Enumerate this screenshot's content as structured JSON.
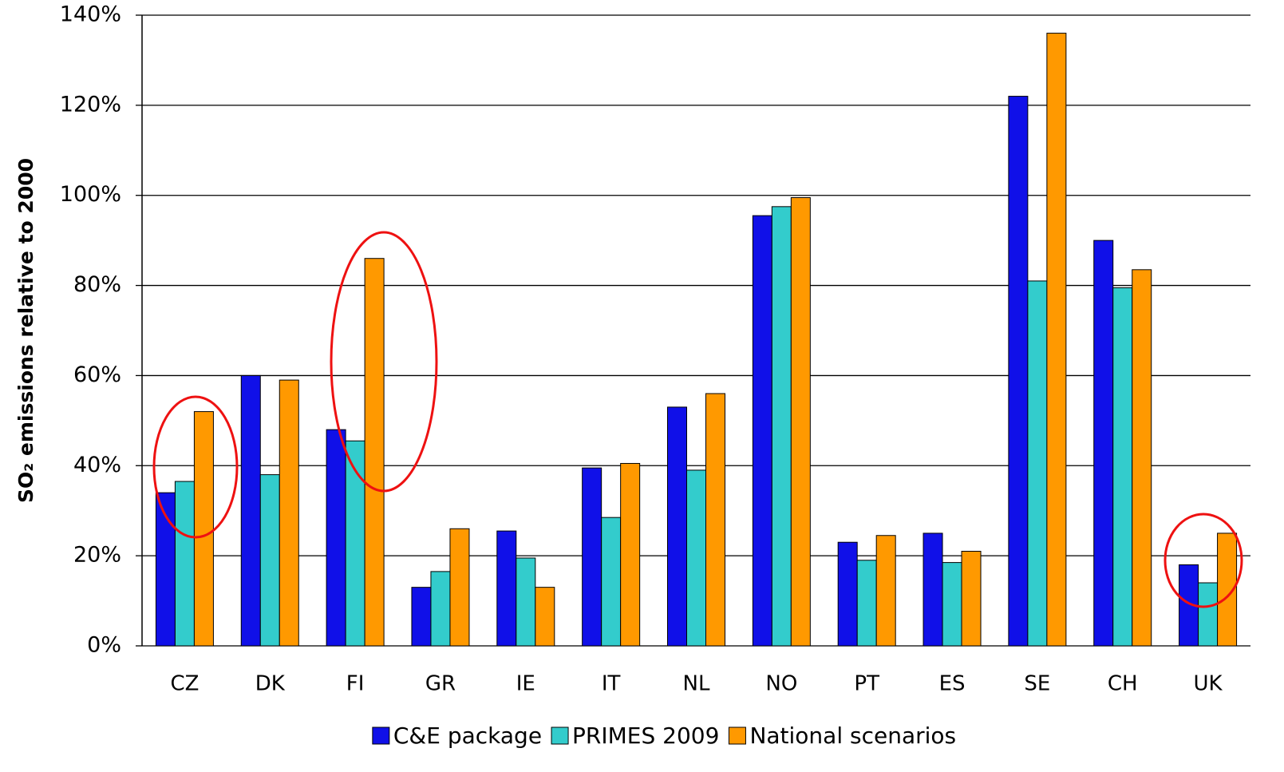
{
  "chart_data": {
    "type": "bar",
    "ylabel": "SO₂ emissions relative to 2000",
    "categories": [
      "CZ",
      "DK",
      "FI",
      "GR",
      "IE",
      "IT",
      "NL",
      "NO",
      "PT",
      "ES",
      "SE",
      "CH",
      "UK"
    ],
    "series": [
      {
        "name": "C&E package",
        "color": "#1010e8",
        "values": [
          34,
          60,
          48,
          13,
          25.5,
          39.5,
          53,
          95.5,
          23,
          25,
          122,
          90,
          18
        ]
      },
      {
        "name": "PRIMES 2009",
        "color": "#33cccc",
        "values": [
          36.5,
          38,
          45.5,
          16.5,
          19.5,
          28.5,
          39,
          97.5,
          19,
          18.5,
          81,
          79.5,
          14
        ]
      },
      {
        "name": "National scenarios",
        "color": "#ff9900",
        "values": [
          52,
          59,
          86,
          26,
          13,
          40.5,
          56,
          99.5,
          24.5,
          21,
          136,
          83.5,
          25
        ]
      }
    ],
    "ylim": [
      0,
      140
    ],
    "yticks": [
      {
        "value": 0,
        "label": "0%"
      },
      {
        "value": 20,
        "label": "20%"
      },
      {
        "value": 40,
        "label": "40%"
      },
      {
        "value": 60,
        "label": "60%"
      },
      {
        "value": 80,
        "label": "80%"
      },
      {
        "value": 100,
        "label": "100%"
      },
      {
        "value": 120,
        "label": "120%"
      },
      {
        "value": 140,
        "label": "140%"
      }
    ],
    "grid": true,
    "legend": "bottom"
  }
}
